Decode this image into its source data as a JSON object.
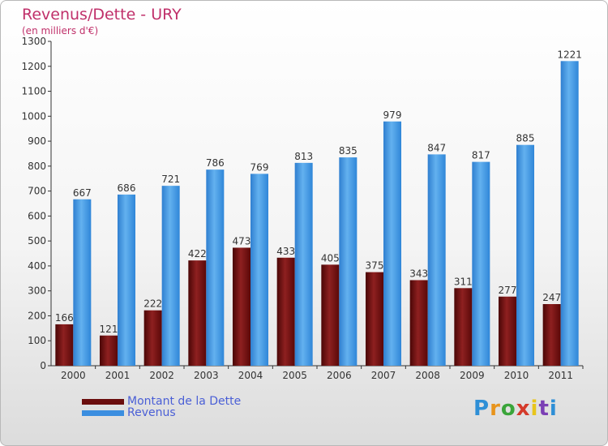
{
  "title": "Revenus/Dette - URY",
  "subtitle": "(en milliers d'€)",
  "legend": [
    {
      "label": "Montant de la Dette",
      "color": "#6b0d0d"
    },
    {
      "label": "Revenus",
      "color": "#3b8ee0"
    }
  ],
  "logo": {
    "text": "Proxiti",
    "letter_colors": [
      "#2e8fd6",
      "#e8941c",
      "#3aa53a",
      "#d43a2a",
      "#e8c51c",
      "#7b3fb5",
      "#2e8fd6"
    ]
  },
  "chart_data": {
    "type": "bar",
    "categories": [
      "2000",
      "2001",
      "2002",
      "2003",
      "2004",
      "2005",
      "2006",
      "2007",
      "2008",
      "2009",
      "2010",
      "2011"
    ],
    "series": [
      {
        "name": "Montant de la Dette",
        "color": "#6b0d0d",
        "values": [
          166,
          121,
          222,
          422,
          473,
          433,
          405,
          375,
          343,
          311,
          277,
          247
        ]
      },
      {
        "name": "Revenus",
        "color": "#3b8ee0",
        "values": [
          667,
          686,
          721,
          786,
          769,
          813,
          835,
          979,
          847,
          817,
          885,
          1221
        ]
      }
    ],
    "ylim": [
      0,
      1300
    ],
    "yticks": [
      "0",
      "100",
      "200",
      "300",
      "400",
      "500",
      "600",
      "700",
      "800",
      "900",
      "1000",
      "1100",
      "1200",
      "1300"
    ],
    "grid": false,
    "xlabel": "",
    "ylabel": ""
  }
}
